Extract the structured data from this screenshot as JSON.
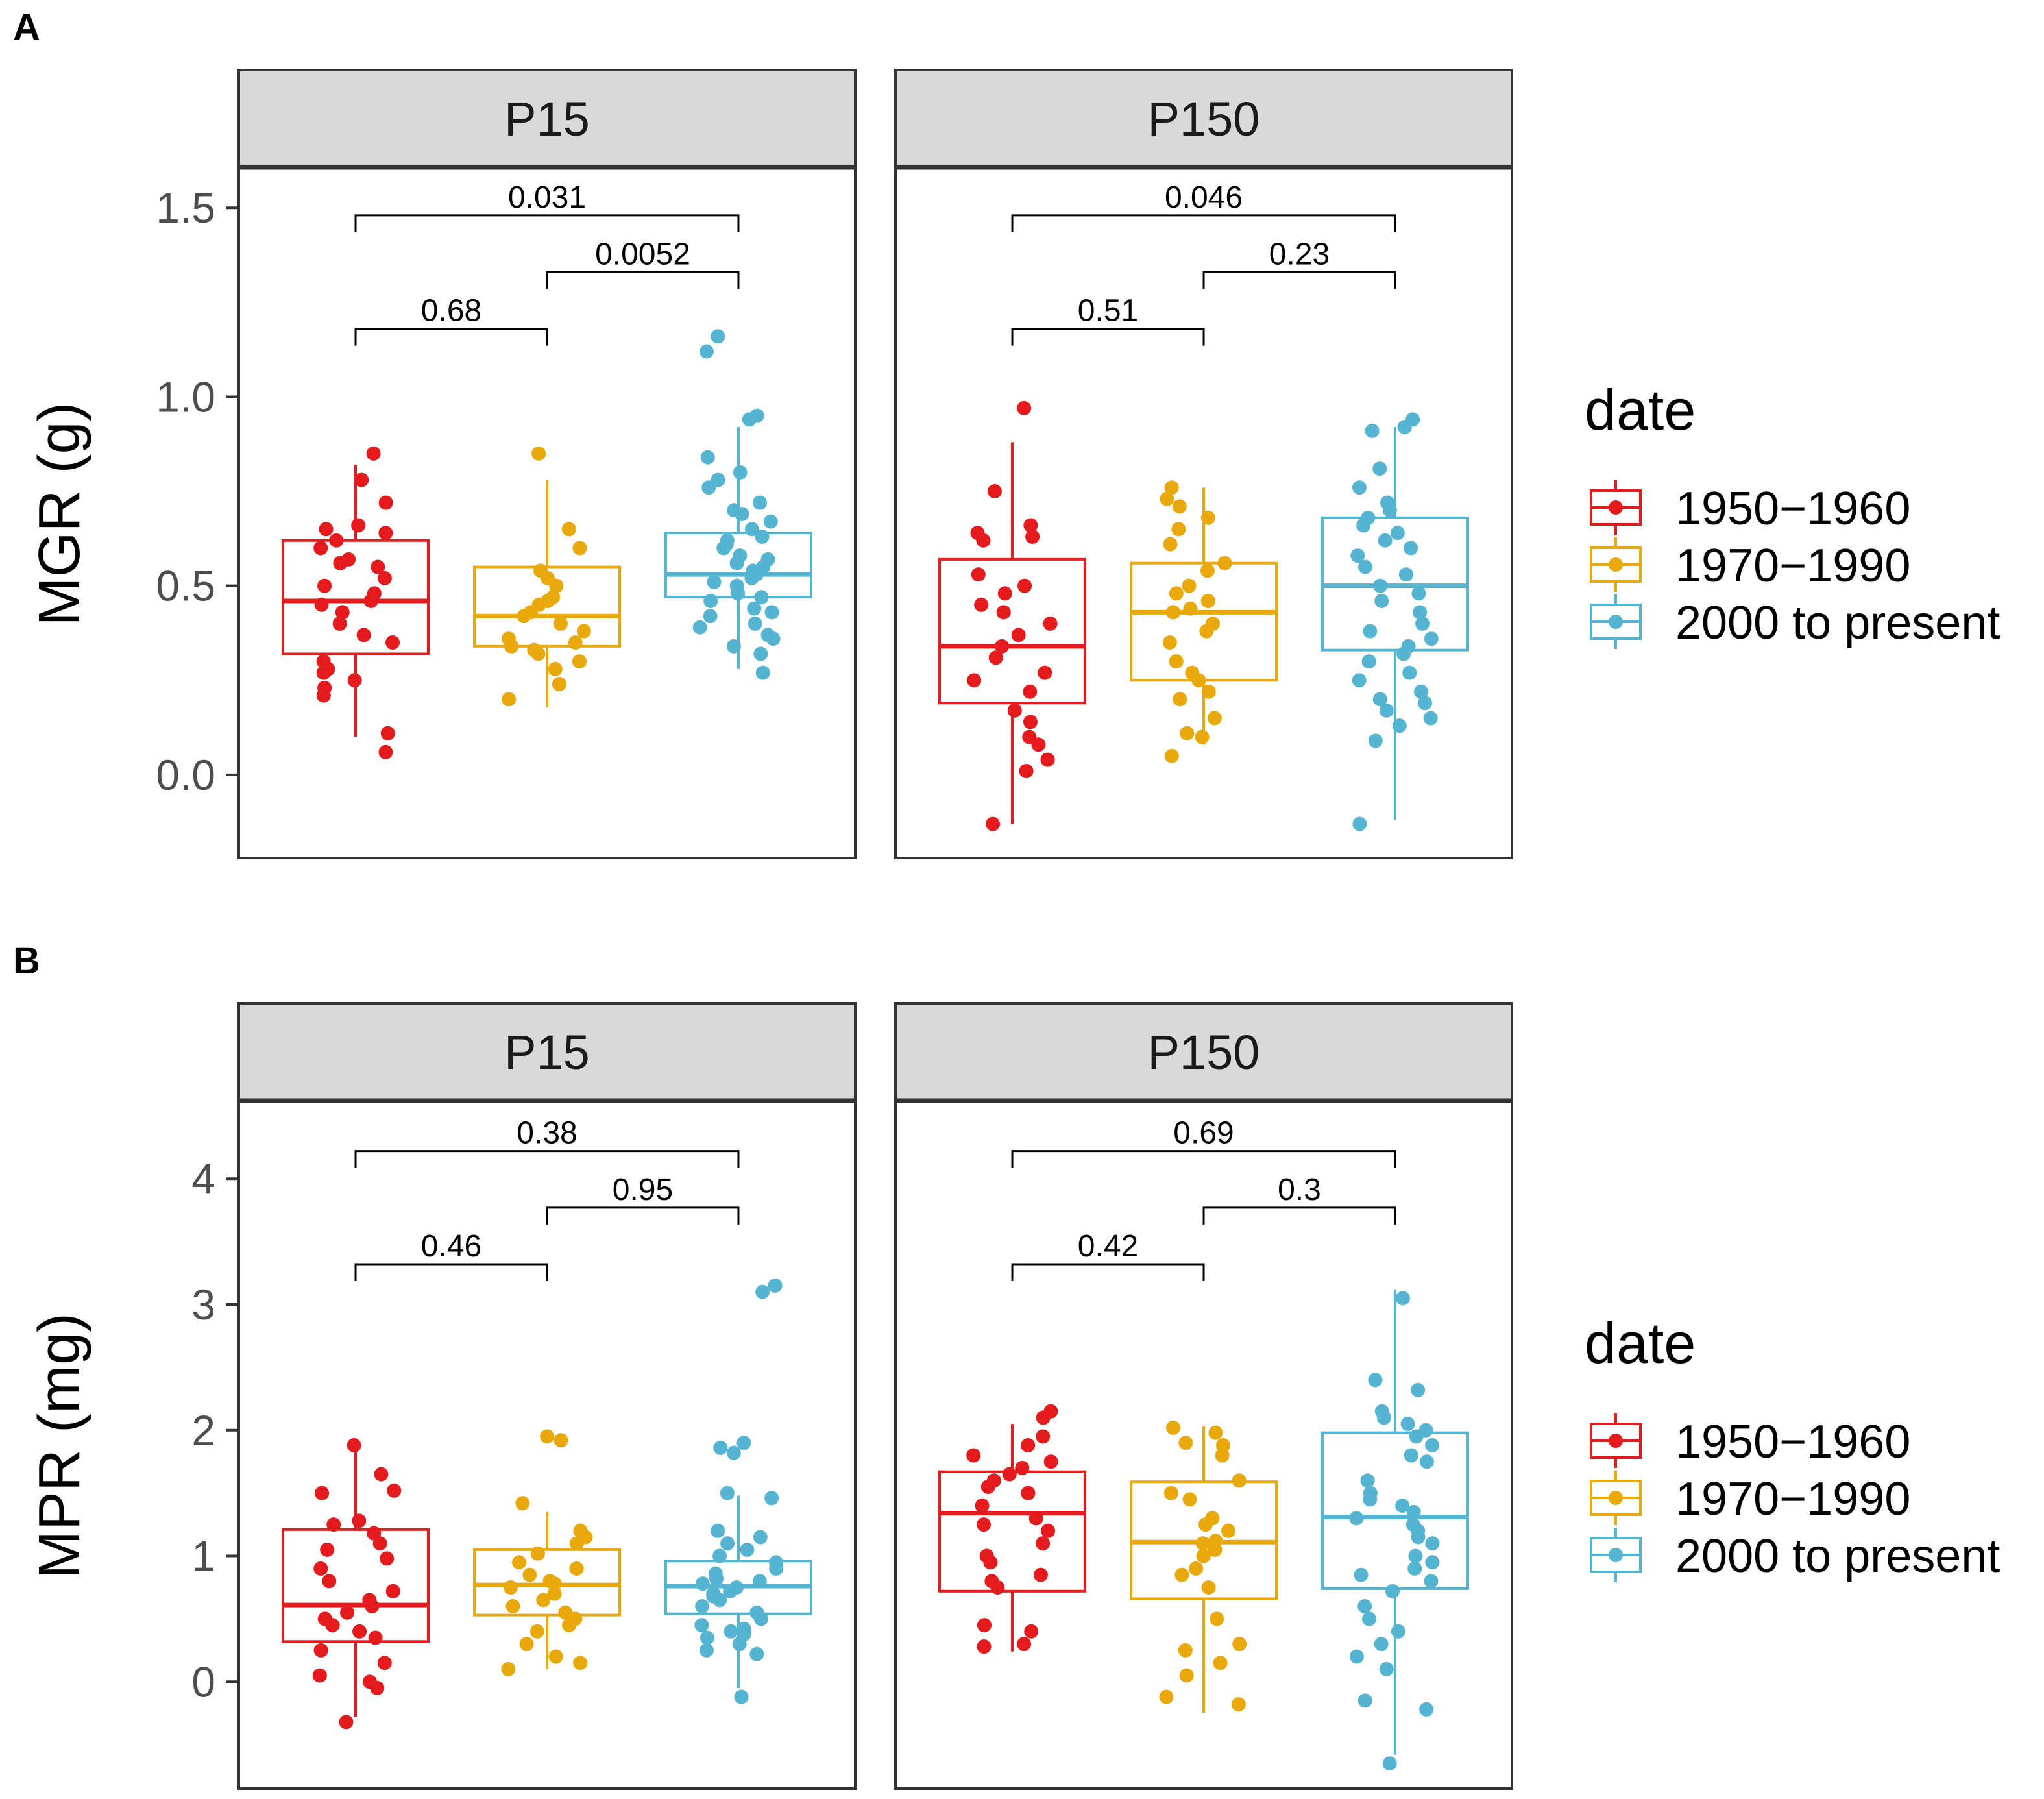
{
  "figure": {
    "facet_strip": [
      "P15",
      "P150"
    ],
    "legend_title": "date",
    "groups": [
      "1950−1960",
      "1970−1990",
      "2000 to present"
    ]
  },
  "colors": {
    "group_1": "#e41a1c",
    "group_2": "#e9a80c",
    "group_3": "#56b4d3",
    "strip_bg": "#d9d9d9",
    "panel_border": "#333333",
    "axis_text": "#4d4d4d"
  },
  "chart_data": [
    {
      "panel_label": "A",
      "type": "box",
      "ylabel": "MGR (g)",
      "ylim": [
        -0.22,
        1.6
      ],
      "yticks": [
        0.0,
        0.5,
        1.0,
        1.5
      ],
      "ytick_labels": [
        "0.0",
        "0.5",
        "1.0",
        "1.5"
      ],
      "legend": {
        "title": "date",
        "entries": [
          "1950−1960",
          "1970−1990",
          "2000 to present"
        ]
      },
      "facets": [
        {
          "strip": "P15",
          "boxes": [
            {
              "group": "1950−1960",
              "q1": 0.32,
              "median": 0.46,
              "q3": 0.62,
              "whisker_low": 0.1,
              "whisker_high": 0.82,
              "points": [
                0.85,
                0.78,
                0.72,
                0.66,
                0.65,
                0.64,
                0.62,
                0.6,
                0.57,
                0.56,
                0.55,
                0.52,
                0.5,
                0.48,
                0.46,
                0.45,
                0.43,
                0.4,
                0.37,
                0.35,
                0.3,
                0.28,
                0.27,
                0.25,
                0.23,
                0.21,
                0.11,
                0.06
              ]
            },
            {
              "group": "1970−1990",
              "q1": 0.34,
              "median": 0.42,
              "q3": 0.55,
              "whisker_low": 0.18,
              "whisker_high": 0.78,
              "points": [
                0.85,
                0.65,
                0.6,
                0.54,
                0.52,
                0.5,
                0.47,
                0.46,
                0.45,
                0.43,
                0.42,
                0.4,
                0.38,
                0.36,
                0.35,
                0.34,
                0.33,
                0.32,
                0.3,
                0.28,
                0.24,
                0.2
              ]
            },
            {
              "group": "2000 to present",
              "q1": 0.47,
              "median": 0.53,
              "q3": 0.64,
              "whisker_low": 0.28,
              "whisker_high": 0.92,
              "points": [
                1.16,
                1.12,
                0.95,
                0.94,
                0.84,
                0.8,
                0.78,
                0.76,
                0.72,
                0.7,
                0.69,
                0.67,
                0.65,
                0.63,
                0.62,
                0.61,
                0.6,
                0.58,
                0.57,
                0.56,
                0.55,
                0.54,
                0.53,
                0.52,
                0.51,
                0.5,
                0.48,
                0.47,
                0.46,
                0.44,
                0.43,
                0.42,
                0.4,
                0.39,
                0.37,
                0.36,
                0.34,
                0.32,
                0.27
              ]
            }
          ],
          "comparisons": [
            {
              "from": 1,
              "to": 2,
              "label": "0.68",
              "y": 1.18
            },
            {
              "from": 2,
              "to": 3,
              "label": "0.0052",
              "y": 1.33
            },
            {
              "from": 1,
              "to": 3,
              "label": "0.031",
              "y": 1.48
            }
          ]
        },
        {
          "strip": "P150",
          "boxes": [
            {
              "group": "1950−1960",
              "q1": 0.19,
              "median": 0.34,
              "q3": 0.57,
              "whisker_low": -0.13,
              "whisker_high": 0.88,
              "points": [
                0.97,
                0.75,
                0.66,
                0.64,
                0.63,
                0.62,
                0.53,
                0.5,
                0.48,
                0.45,
                0.43,
                0.4,
                0.37,
                0.34,
                0.31,
                0.27,
                0.25,
                0.22,
                0.17,
                0.14,
                0.1,
                0.08,
                0.04,
                0.01,
                -0.13
              ]
            },
            {
              "group": "1970−1990",
              "q1": 0.25,
              "median": 0.43,
              "q3": 0.56,
              "whisker_low": 0.08,
              "whisker_high": 0.76,
              "points": [
                0.76,
                0.73,
                0.71,
                0.68,
                0.65,
                0.61,
                0.56,
                0.54,
                0.5,
                0.48,
                0.46,
                0.44,
                0.43,
                0.4,
                0.38,
                0.35,
                0.3,
                0.27,
                0.25,
                0.22,
                0.2,
                0.15,
                0.11,
                0.1,
                0.05
              ]
            },
            {
              "group": "2000 to present",
              "q1": 0.33,
              "median": 0.5,
              "q3": 0.68,
              "whisker_low": -0.12,
              "whisker_high": 0.92,
              "points": [
                0.94,
                0.92,
                0.91,
                0.81,
                0.76,
                0.72,
                0.7,
                0.68,
                0.66,
                0.64,
                0.62,
                0.6,
                0.58,
                0.55,
                0.53,
                0.5,
                0.48,
                0.46,
                0.43,
                0.4,
                0.38,
                0.36,
                0.34,
                0.32,
                0.3,
                0.27,
                0.25,
                0.22,
                0.2,
                0.19,
                0.17,
                0.15,
                0.13,
                0.09,
                -0.13
              ]
            }
          ],
          "comparisons": [
            {
              "from": 1,
              "to": 2,
              "label": "0.51",
              "y": 1.18
            },
            {
              "from": 2,
              "to": 3,
              "label": "0.23",
              "y": 1.33
            },
            {
              "from": 1,
              "to": 3,
              "label": "0.046",
              "y": 1.48
            }
          ]
        }
      ]
    },
    {
      "panel_label": "B",
      "type": "box",
      "ylabel": "MPR (mg)",
      "ylim": [
        -0.85,
        4.6
      ],
      "yticks": [
        0,
        1,
        2,
        3,
        4
      ],
      "ytick_labels": [
        "0",
        "1",
        "2",
        "3",
        "4"
      ],
      "legend": {
        "title": "date",
        "entries": [
          "1950−1960",
          "1970−1990",
          "2000 to present"
        ]
      },
      "facets": [
        {
          "strip": "P15",
          "boxes": [
            {
              "group": "1950−1960",
              "q1": 0.32,
              "median": 0.61,
              "q3": 1.21,
              "whisker_low": -0.28,
              "whisker_high": 1.9,
              "points": [
                1.88,
                1.65,
                1.52,
                1.5,
                1.28,
                1.25,
                1.18,
                1.1,
                1.05,
                0.98,
                0.9,
                0.8,
                0.72,
                0.65,
                0.6,
                0.55,
                0.5,
                0.45,
                0.4,
                0.35,
                0.25,
                0.15,
                0.05,
                0.0,
                -0.05,
                -0.32
              ]
            },
            {
              "group": "1970−1990",
              "q1": 0.53,
              "median": 0.77,
              "q3": 1.05,
              "whisker_low": 0.1,
              "whisker_high": 1.35,
              "points": [
                1.95,
                1.92,
                1.42,
                1.2,
                1.15,
                1.1,
                1.02,
                0.95,
                0.9,
                0.85,
                0.8,
                0.78,
                0.75,
                0.7,
                0.65,
                0.6,
                0.55,
                0.5,
                0.45,
                0.4,
                0.3,
                0.2,
                0.15,
                0.1
              ]
            },
            {
              "group": "2000 to present",
              "q1": 0.54,
              "median": 0.76,
              "q3": 0.96,
              "whisker_low": -0.05,
              "whisker_high": 1.48,
              "points": [
                3.15,
                3.1,
                1.9,
                1.86,
                1.82,
                1.5,
                1.46,
                1.2,
                1.15,
                1.1,
                1.05,
                1.0,
                0.95,
                0.9,
                0.86,
                0.82,
                0.8,
                0.78,
                0.75,
                0.72,
                0.7,
                0.68,
                0.65,
                0.6,
                0.55,
                0.5,
                0.45,
                0.42,
                0.4,
                0.38,
                0.35,
                0.3,
                0.25,
                0.22,
                -0.12
              ]
            }
          ],
          "comparisons": [
            {
              "from": 1,
              "to": 2,
              "label": "0.46",
              "y": 3.32
            },
            {
              "from": 2,
              "to": 3,
              "label": "0.95",
              "y": 3.77
            },
            {
              "from": 1,
              "to": 3,
              "label": "0.38",
              "y": 4.22
            }
          ]
        },
        {
          "strip": "P150",
          "boxes": [
            {
              "group": "1950−1960",
              "q1": 0.72,
              "median": 1.34,
              "q3": 1.67,
              "whisker_low": 0.24,
              "whisker_high": 2.05,
              "points": [
                2.15,
                2.1,
                1.95,
                1.88,
                1.8,
                1.75,
                1.7,
                1.65,
                1.6,
                1.55,
                1.5,
                1.4,
                1.3,
                1.25,
                1.2,
                1.1,
                1.0,
                0.95,
                0.85,
                0.8,
                0.75,
                0.45,
                0.4,
                0.3,
                0.28
              ]
            },
            {
              "group": "1970−1990",
              "q1": 0.66,
              "median": 1.11,
              "q3": 1.59,
              "whisker_low": -0.25,
              "whisker_high": 2.03,
              "points": [
                2.02,
                1.98,
                1.9,
                1.88,
                1.8,
                1.6,
                1.5,
                1.45,
                1.3,
                1.25,
                1.2,
                1.12,
                1.1,
                1.05,
                1.0,
                0.9,
                0.85,
                0.75,
                0.5,
                0.3,
                0.25,
                0.15,
                0.05,
                -0.12,
                -0.18
              ]
            },
            {
              "group": "2000 to present",
              "q1": 0.74,
              "median": 1.31,
              "q3": 1.98,
              "whisker_low": -0.58,
              "whisker_high": 3.12,
              "points": [
                3.05,
                2.4,
                2.32,
                2.15,
                2.1,
                2.05,
                2.0,
                1.95,
                1.88,
                1.8,
                1.75,
                1.6,
                1.5,
                1.45,
                1.4,
                1.35,
                1.3,
                1.25,
                1.2,
                1.15,
                1.1,
                1.0,
                0.95,
                0.9,
                0.85,
                0.8,
                0.72,
                0.6,
                0.5,
                0.4,
                0.3,
                0.2,
                0.1,
                -0.15,
                -0.22,
                -0.65
              ]
            }
          ],
          "comparisons": [
            {
              "from": 1,
              "to": 2,
              "label": "0.42",
              "y": 3.32
            },
            {
              "from": 2,
              "to": 3,
              "label": "0.3",
              "y": 3.77
            },
            {
              "from": 1,
              "to": 3,
              "label": "0.69",
              "y": 4.22
            }
          ]
        }
      ]
    }
  ]
}
